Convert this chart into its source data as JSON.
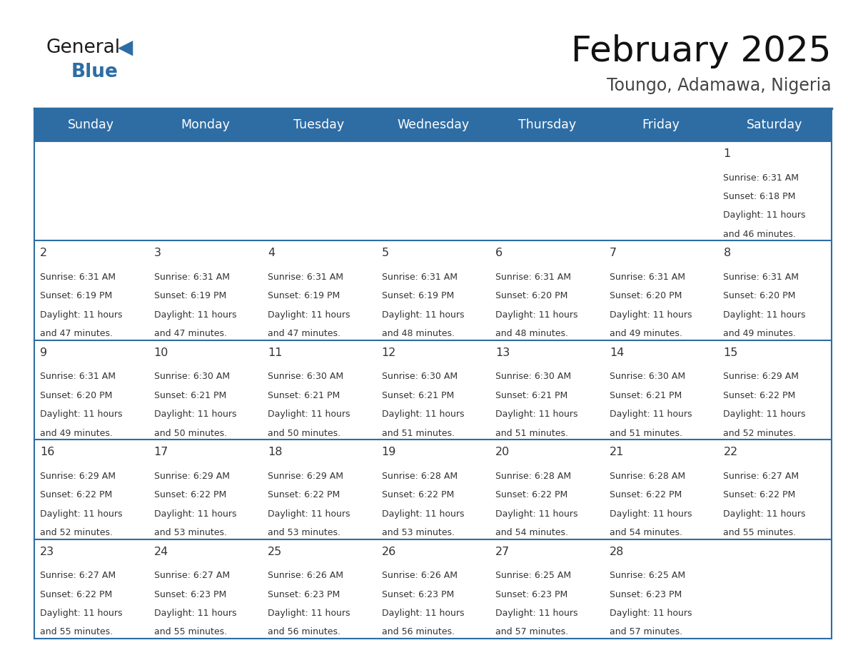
{
  "title": "February 2025",
  "subtitle": "Toungo, Adamawa, Nigeria",
  "header_bg": "#2E6DA4",
  "header_text": "#FFFFFF",
  "cell_bg": "#FFFFFF",
  "row_sep_color": "#2E6DA4",
  "text_color": "#333333",
  "days_of_week": [
    "Sunday",
    "Monday",
    "Tuesday",
    "Wednesday",
    "Thursday",
    "Friday",
    "Saturday"
  ],
  "calendar_data": [
    [
      null,
      null,
      null,
      null,
      null,
      null,
      {
        "day": 1,
        "sunrise": "6:31 AM",
        "sunset": "6:18 PM",
        "daylight": "11 hours\nand 46 minutes."
      }
    ],
    [
      {
        "day": 2,
        "sunrise": "6:31 AM",
        "sunset": "6:19 PM",
        "daylight": "11 hours\nand 47 minutes."
      },
      {
        "day": 3,
        "sunrise": "6:31 AM",
        "sunset": "6:19 PM",
        "daylight": "11 hours\nand 47 minutes."
      },
      {
        "day": 4,
        "sunrise": "6:31 AM",
        "sunset": "6:19 PM",
        "daylight": "11 hours\nand 47 minutes."
      },
      {
        "day": 5,
        "sunrise": "6:31 AM",
        "sunset": "6:19 PM",
        "daylight": "11 hours\nand 48 minutes."
      },
      {
        "day": 6,
        "sunrise": "6:31 AM",
        "sunset": "6:20 PM",
        "daylight": "11 hours\nand 48 minutes."
      },
      {
        "day": 7,
        "sunrise": "6:31 AM",
        "sunset": "6:20 PM",
        "daylight": "11 hours\nand 49 minutes."
      },
      {
        "day": 8,
        "sunrise": "6:31 AM",
        "sunset": "6:20 PM",
        "daylight": "11 hours\nand 49 minutes."
      }
    ],
    [
      {
        "day": 9,
        "sunrise": "6:31 AM",
        "sunset": "6:20 PM",
        "daylight": "11 hours\nand 49 minutes."
      },
      {
        "day": 10,
        "sunrise": "6:30 AM",
        "sunset": "6:21 PM",
        "daylight": "11 hours\nand 50 minutes."
      },
      {
        "day": 11,
        "sunrise": "6:30 AM",
        "sunset": "6:21 PM",
        "daylight": "11 hours\nand 50 minutes."
      },
      {
        "day": 12,
        "sunrise": "6:30 AM",
        "sunset": "6:21 PM",
        "daylight": "11 hours\nand 51 minutes."
      },
      {
        "day": 13,
        "sunrise": "6:30 AM",
        "sunset": "6:21 PM",
        "daylight": "11 hours\nand 51 minutes."
      },
      {
        "day": 14,
        "sunrise": "6:30 AM",
        "sunset": "6:21 PM",
        "daylight": "11 hours\nand 51 minutes."
      },
      {
        "day": 15,
        "sunrise": "6:29 AM",
        "sunset": "6:22 PM",
        "daylight": "11 hours\nand 52 minutes."
      }
    ],
    [
      {
        "day": 16,
        "sunrise": "6:29 AM",
        "sunset": "6:22 PM",
        "daylight": "11 hours\nand 52 minutes."
      },
      {
        "day": 17,
        "sunrise": "6:29 AM",
        "sunset": "6:22 PM",
        "daylight": "11 hours\nand 53 minutes."
      },
      {
        "day": 18,
        "sunrise": "6:29 AM",
        "sunset": "6:22 PM",
        "daylight": "11 hours\nand 53 minutes."
      },
      {
        "day": 19,
        "sunrise": "6:28 AM",
        "sunset": "6:22 PM",
        "daylight": "11 hours\nand 53 minutes."
      },
      {
        "day": 20,
        "sunrise": "6:28 AM",
        "sunset": "6:22 PM",
        "daylight": "11 hours\nand 54 minutes."
      },
      {
        "day": 21,
        "sunrise": "6:28 AM",
        "sunset": "6:22 PM",
        "daylight": "11 hours\nand 54 minutes."
      },
      {
        "day": 22,
        "sunrise": "6:27 AM",
        "sunset": "6:22 PM",
        "daylight": "11 hours\nand 55 minutes."
      }
    ],
    [
      {
        "day": 23,
        "sunrise": "6:27 AM",
        "sunset": "6:22 PM",
        "daylight": "11 hours\nand 55 minutes."
      },
      {
        "day": 24,
        "sunrise": "6:27 AM",
        "sunset": "6:23 PM",
        "daylight": "11 hours\nand 55 minutes."
      },
      {
        "day": 25,
        "sunrise": "6:26 AM",
        "sunset": "6:23 PM",
        "daylight": "11 hours\nand 56 minutes."
      },
      {
        "day": 26,
        "sunrise": "6:26 AM",
        "sunset": "6:23 PM",
        "daylight": "11 hours\nand 56 minutes."
      },
      {
        "day": 27,
        "sunrise": "6:25 AM",
        "sunset": "6:23 PM",
        "daylight": "11 hours\nand 57 minutes."
      },
      {
        "day": 28,
        "sunrise": "6:25 AM",
        "sunset": "6:23 PM",
        "daylight": "11 hours\nand 57 minutes."
      },
      null
    ]
  ],
  "fig_width": 11.88,
  "fig_height": 9.18,
  "dpi": 100
}
